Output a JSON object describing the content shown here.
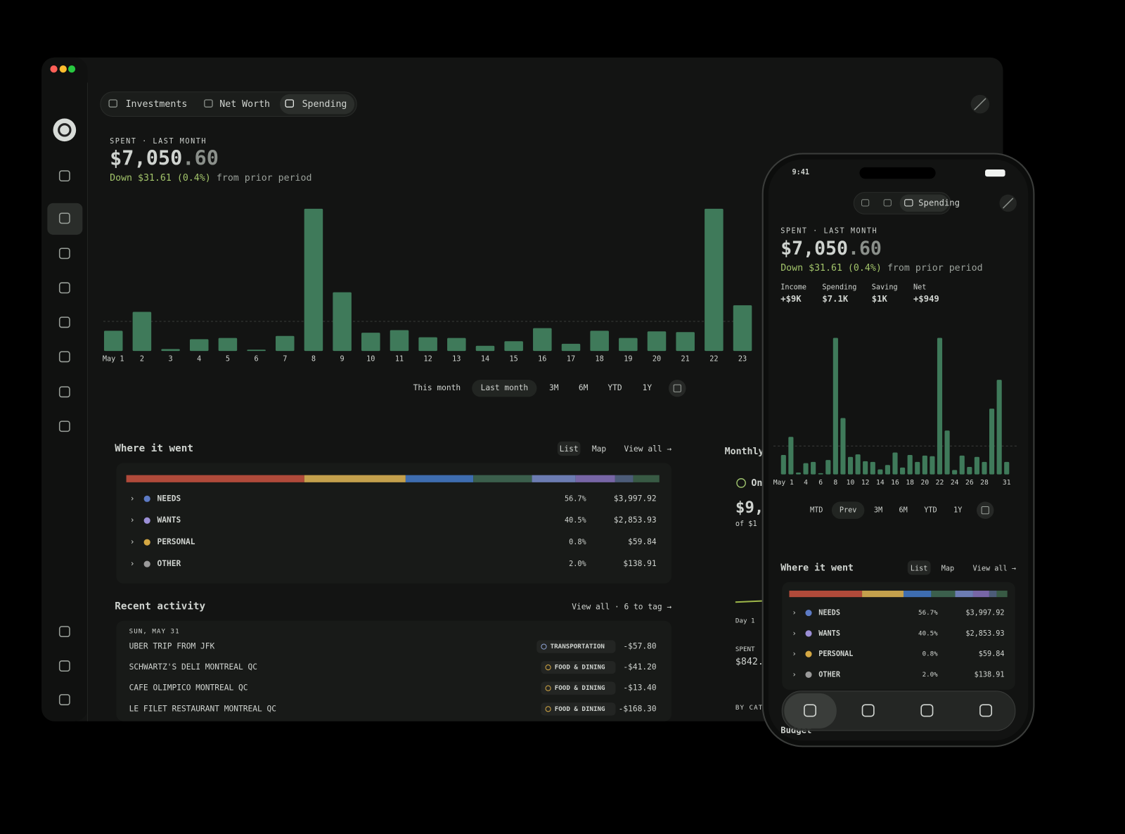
{
  "desktop": {
    "tabs": [
      "Investments",
      "Net Worth",
      "Spending"
    ],
    "selected_tab": "Spending",
    "ranges": [
      "This month",
      "Last month",
      "3M",
      "6M",
      "YTD",
      "1Y"
    ],
    "selected_range": "Last month"
  },
  "summary": {
    "label": "SPENT · LAST MONTH",
    "amount": "$7,050",
    "cents": ".60",
    "change": "Down $31.61 (0.4%)",
    "change_note": "from prior period"
  },
  "chart_data": [
    {
      "type": "bar",
      "color": "#3f7a5a",
      "categories": [
        "May 1",
        "2",
        "3",
        "4",
        "5",
        "6",
        "7",
        "8",
        "9",
        "10",
        "11",
        "12",
        "13",
        "14",
        "15",
        "16",
        "17",
        "18",
        "19",
        "20",
        "21",
        "22",
        "23"
      ],
      "values": [
        155,
        300,
        15,
        90,
        100,
        10,
        115,
        1090,
        450,
        140,
        160,
        105,
        100,
        40,
        75,
        175,
        55,
        155,
        100,
        150,
        145,
        1090,
        350
      ],
      "ylim": [
        0,
        1100
      ],
      "reference_line": 227
    },
    {
      "type": "bar",
      "color": "#3f7a5a",
      "categories": [
        "May 1",
        null,
        null,
        "4",
        null,
        "6",
        null,
        "8",
        null,
        "10",
        null,
        "12",
        null,
        "14",
        null,
        "16",
        null,
        "18",
        null,
        "20",
        null,
        "22",
        null,
        "24",
        null,
        "26",
        null,
        "28",
        null,
        null,
        "31"
      ],
      "values": [
        155,
        300,
        15,
        90,
        100,
        10,
        115,
        1090,
        450,
        140,
        160,
        105,
        100,
        40,
        75,
        175,
        55,
        155,
        100,
        150,
        145,
        1090,
        350,
        35,
        150,
        60,
        140,
        100,
        525,
        755,
        100
      ],
      "ylim": [
        0,
        1100
      ],
      "reference_line": 227
    }
  ],
  "where": {
    "title": "Where it went",
    "views": [
      "List",
      "Map"
    ],
    "selected_view": "List",
    "view_all": "View all →",
    "breakdown": [
      {
        "color": "#b04a3a",
        "value": 33.4
      },
      {
        "color": "#c4a04c",
        "value": 19
      },
      {
        "color": "#3e6db0",
        "value": 12.7
      },
      {
        "color": "#3b5f4c",
        "value": 11
      },
      {
        "color": "#6c7cb2",
        "value": 8.2
      },
      {
        "color": "#7766a6",
        "value": 7.4
      },
      {
        "color": "#4c5c78",
        "value": 3.4
      },
      {
        "color": "#385a44",
        "value": 4.9
      }
    ],
    "groups": [
      {
        "name": "NEEDS",
        "color": "#5c7ac4",
        "share": "56.7%",
        "amount": "$3,997.92"
      },
      {
        "name": "WANTS",
        "color": "#9b8fd6",
        "share": "40.5%",
        "amount": "$2,853.93"
      },
      {
        "name": "PERSONAL",
        "color": "#d4a843",
        "share": "0.8%",
        "amount": "$59.84"
      },
      {
        "name": "OTHER",
        "color": "#9a9a9a",
        "share": "2.0%",
        "amount": "$138.91"
      }
    ]
  },
  "recent": {
    "title": "Recent activity",
    "link": "View all · 6 to tag →",
    "date": "SUN, MAY 31",
    "items": [
      {
        "merchant": "UBER TRIP FROM JFK",
        "tag": "TRANSPORTATION",
        "tag_color": "#8fa3d6",
        "amount": "-$57.80"
      },
      {
        "merchant": "SCHWARTZ'S DELI MONTREAL QC",
        "tag": "FOOD & DINING",
        "tag_color": "#d4a843",
        "amount": "-$41.20"
      },
      {
        "merchant": "CAFE OLIMPICO MONTREAL QC",
        "tag": "FOOD & DINING",
        "tag_color": "#d4a843",
        "amount": "-$13.40"
      },
      {
        "merchant": "LE FILET RESTAURANT MONTREAL QC",
        "tag": "FOOD & DINING",
        "tag_color": "#d4a843",
        "amount": "-$168.30"
      }
    ]
  },
  "monthly": {
    "title": "Monthly",
    "status": "On",
    "amount": "$9,",
    "of": "of $1",
    "axis_start": "Day 1",
    "spent_label": "SPENT",
    "spent": "$842.",
    "by_cat": "BY CAT"
  },
  "phone": {
    "time": "9:41",
    "tab": "Spending",
    "stats": [
      {
        "label": "Income",
        "value": "+$9K",
        "color": "#9fc46e"
      },
      {
        "label": "Spending",
        "value": "$7.1K",
        "color": "#e6e9e6"
      },
      {
        "label": "Saving",
        "value": "$1K",
        "color": "#9fc46e"
      },
      {
        "label": "Net",
        "value": "+$949",
        "color": "#9fc46e"
      }
    ],
    "ranges": [
      "MTD",
      "Prev",
      "3M",
      "6M",
      "YTD",
      "1Y"
    ],
    "selected_range": "Prev",
    "budget": "Budget"
  }
}
